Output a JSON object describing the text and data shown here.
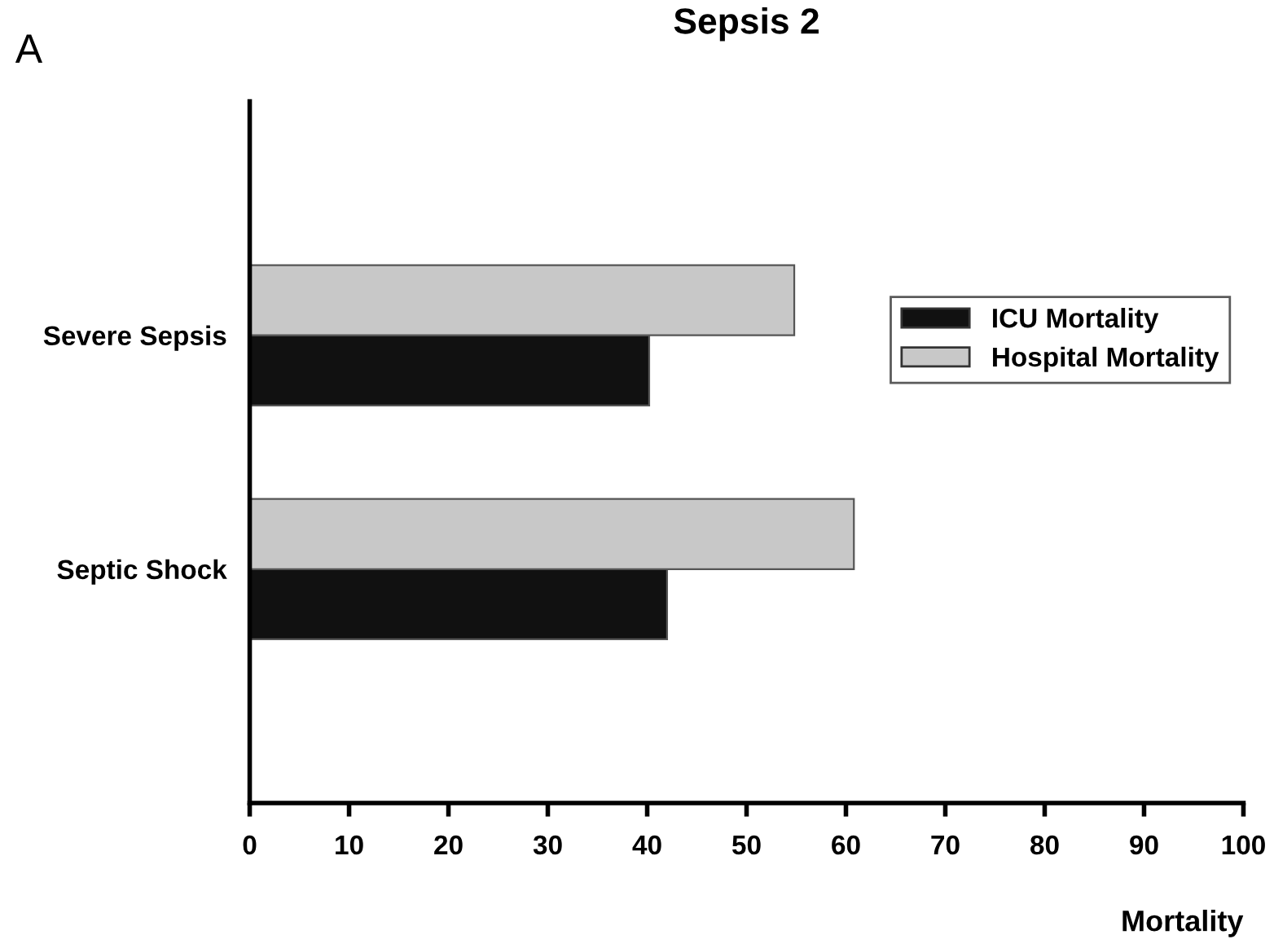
{
  "chart_data": {
    "type": "bar",
    "orientation": "horizontal",
    "title": "Sepsis 2",
    "xlabel": "Mortality",
    "annotations": [
      "A"
    ],
    "categories": [
      "Severe Sepsis",
      "Septic Shock"
    ],
    "series": [
      {
        "name": "ICU Mortality",
        "color": "#111111",
        "values": [
          40.2,
          42.0
        ]
      },
      {
        "name": "Hospital Mortality",
        "color": "#c8c8c8",
        "values": [
          54.8,
          60.8
        ]
      }
    ],
    "xlim": [
      0,
      100
    ],
    "xticks": [
      0,
      10,
      20,
      30,
      40,
      50,
      60,
      70,
      80,
      90,
      100
    ],
    "grid": false,
    "legend": "right"
  }
}
